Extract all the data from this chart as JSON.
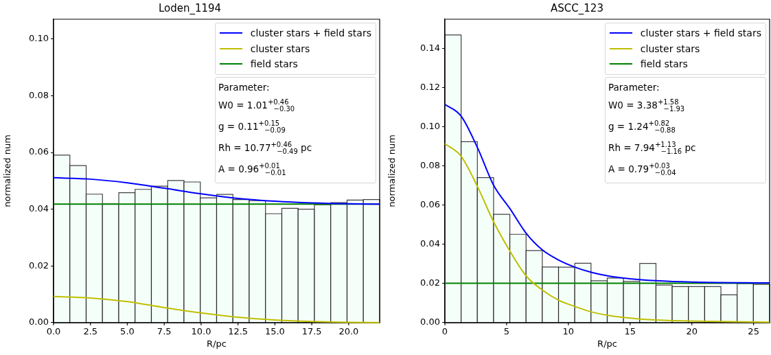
{
  "chart_data": [
    {
      "type": "histogram",
      "title": "Loden_1194",
      "xlabel": "R/pc",
      "ylabel": "normalized num",
      "bins": [
        0,
        1.105,
        2.21,
        3.315,
        4.42,
        5.525,
        6.63,
        7.735,
        8.84,
        9.945,
        11.05,
        12.155,
        13.26,
        14.365,
        15.47,
        16.575,
        17.68,
        18.785,
        19.89,
        20.995,
        22.1
      ],
      "series": [
        {
          "color": "#f5fffa",
          "values": [
            0.0591,
            0.0554,
            0.0453,
            0.0418,
            0.0458,
            0.047,
            0.0481,
            0.0501,
            0.0496,
            0.044,
            0.0452,
            0.0434,
            0.043,
            0.0384,
            0.0403,
            0.04,
            0.0416,
            0.0423,
            0.0432,
            0.0434
          ]
        },
        {
          "type": "line",
          "name": "cluster stars + field stars",
          "color": "#0000ff",
          "x": [
            0,
            2.5,
            5,
            7.5,
            10,
            12.5,
            15,
            17.5,
            20,
            22.1
          ],
          "values": [
            0.0511,
            0.0506,
            0.0493,
            0.0474,
            0.0454,
            0.0438,
            0.0428,
            0.0422,
            0.0419,
            0.0418
          ]
        },
        {
          "type": "line",
          "name": "cluster stars",
          "color": "#bfbf00",
          "x": [
            0,
            2.5,
            5,
            7.5,
            10,
            12.5,
            15,
            17.5,
            20,
            22.1
          ],
          "values": [
            0.0092,
            0.0087,
            0.0074,
            0.0053,
            0.0034,
            0.0019,
            0.0009,
            0.0004,
            0.0001,
            0
          ]
        },
        {
          "type": "line",
          "name": "field stars",
          "color": "#008000",
          "x": [
            0,
            22.1
          ],
          "values": [
            0.0418,
            0.0418
          ]
        }
      ],
      "xlim": [
        0,
        22.1
      ],
      "ylim": [
        0,
        0.107
      ],
      "xticks": [
        {
          "value": 0,
          "label": "0.0"
        },
        {
          "value": 2.5,
          "label": "2.5"
        },
        {
          "value": 5,
          "label": "5.0"
        },
        {
          "value": 7.5,
          "label": "7.5"
        },
        {
          "value": 10,
          "label": "10.0"
        },
        {
          "value": 12.5,
          "label": "12.5"
        },
        {
          "value": 15,
          "label": "15.0"
        },
        {
          "value": 17.5,
          "label": "17.5"
        },
        {
          "value": 20,
          "label": "20.0"
        }
      ],
      "yticks": [
        {
          "value": 0,
          "label": "0.00"
        },
        {
          "value": 0.02,
          "label": "0.02"
        },
        {
          "value": 0.04,
          "label": "0.04"
        },
        {
          "value": 0.06,
          "label": "0.06"
        },
        {
          "value": 0.08,
          "label": "0.08"
        },
        {
          "value": 0.1,
          "label": "0.10"
        }
      ],
      "marker": "none",
      "legend": "top right",
      "annotations": [
        "Parameter:",
        "W0 = 1.01$^{+0.46}$$_{−0.30}$",
        "g = 0.11$^{+0.15}$$_{−0.09}$",
        "Rh = 10.77$^{+0.46}$$_{−0.49}$ pc",
        "A = 0.96$^{+0.01}$$_{−0.01}$"
      ]
    },
    {
      "type": "histogram",
      "title": "ASCC_123",
      "xlabel": "R/pc",
      "ylabel": "normalized num",
      "bins": [
        0,
        1.315,
        2.63,
        3.945,
        5.26,
        6.575,
        7.89,
        9.205,
        10.52,
        11.835,
        13.15,
        14.465,
        15.78,
        17.095,
        18.41,
        19.725,
        21.04,
        22.355,
        23.67,
        24.985,
        26.3
      ],
      "series": [
        {
          "color": "#f5fffa",
          "values": [
            0.147,
            0.0924,
            0.0741,
            0.0553,
            0.0451,
            0.0368,
            0.0284,
            0.0283,
            0.0303,
            0.0214,
            0.0228,
            0.021,
            0.0302,
            0.0192,
            0.0184,
            0.0184,
            0.0184,
            0.0142,
            0.02,
            0.0195
          ]
        },
        {
          "type": "line",
          "name": "cluster stars + field stars",
          "color": "#0000ff",
          "x": [
            0,
            1.315,
            2.63,
            3.945,
            5.27,
            6.6,
            7.9,
            9.2,
            10.5,
            11.9,
            13.2,
            15,
            17.1,
            20,
            26.3
          ],
          "values": [
            0.1115,
            0.1055,
            0.0895,
            0.0702,
            0.0582,
            0.0455,
            0.0371,
            0.032,
            0.0284,
            0.0256,
            0.0239,
            0.0224,
            0.0214,
            0.0207,
            0.0203
          ]
        },
        {
          "type": "line",
          "name": "cluster stars",
          "color": "#bfbf00",
          "x": [
            0,
            1.315,
            2.63,
            3.945,
            5.27,
            6.6,
            7.9,
            9.2,
            10.5,
            11.9,
            13.2,
            15,
            17.1,
            20,
            26.3
          ],
          "values": [
            0.0914,
            0.085,
            0.0696,
            0.0515,
            0.0365,
            0.0237,
            0.0166,
            0.0115,
            0.0083,
            0.0054,
            0.0037,
            0.0023,
            0.0013,
            0.0008,
            0.0002
          ]
        },
        {
          "type": "line",
          "name": "field stars",
          "color": "#008000",
          "x": [
            0,
            26.3
          ],
          "values": [
            0.0201,
            0.0201
          ]
        }
      ],
      "xlim": [
        0,
        26.3
      ],
      "ylim": [
        0,
        0.155
      ],
      "xticks": [
        0,
        5,
        10,
        15,
        20,
        25
      ],
      "yticks": [
        {
          "value": 0,
          "label": "0.00"
        },
        {
          "value": 0.02,
          "label": "0.02"
        },
        {
          "value": 0.04,
          "label": "0.04"
        },
        {
          "value": 0.06,
          "label": "0.06"
        },
        {
          "value": 0.08,
          "label": "0.08"
        },
        {
          "value": 0.1,
          "label": "0.10"
        },
        {
          "value": 0.12,
          "label": "0.12"
        },
        {
          "value": 0.14,
          "label": "0.14"
        }
      ],
      "marker": "none",
      "legend": "top right",
      "annotations": [
        "Parameter:",
        "W0 = 3.38$^{+1.58}$$_{−1.93}$",
        "g = 1.24$^{+0.82}$$_{−0.88}$",
        "Rh = 7.94$^{+1.13}$$_{−1.16}$ pc",
        "A = 0.79$^{+0.03}$$_{−0.04}$"
      ]
    }
  ]
}
